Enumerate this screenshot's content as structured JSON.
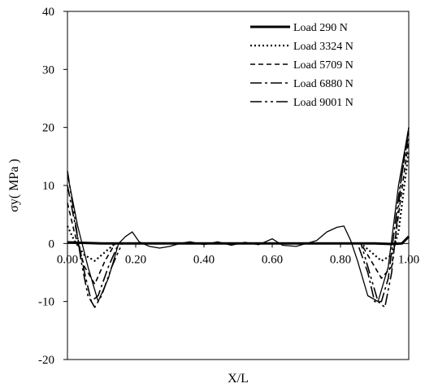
{
  "chart_data": {
    "type": "line",
    "xlabel": "X/L",
    "ylabel": "σy( MPa )",
    "xlim": [
      0,
      1
    ],
    "ylim": [
      -20,
      40
    ],
    "xticks": [
      "0.00",
      "0.20",
      "0.40",
      "0.60",
      "0.80",
      "1.00"
    ],
    "yticks": [
      "-20",
      "-10",
      "0",
      "10",
      "20",
      "30",
      "40"
    ],
    "grid": false,
    "legend_position": "top-right",
    "series": [
      {
        "name": "Load 290 N",
        "style": "solid-thick",
        "x": [
          0,
          0.05,
          0.1,
          0.2,
          0.3,
          0.4,
          0.5,
          0.6,
          0.7,
          0.8,
          0.9,
          0.95,
          0.98,
          1.0
        ],
        "y": [
          0.2,
          0.1,
          0,
          0,
          0,
          0,
          0,
          0,
          0,
          0,
          0,
          -0.1,
          0,
          1.2
        ]
      },
      {
        "name": "Load 3324 N",
        "style": "dotted",
        "x": [
          0,
          0.02,
          0.05,
          0.08,
          0.11,
          0.14,
          0.2,
          0.4,
          0.6,
          0.8,
          0.86,
          0.89,
          0.92,
          0.95,
          0.97,
          1.0
        ],
        "y": [
          3,
          0.5,
          -2,
          -3,
          -1.5,
          0,
          0,
          0,
          0,
          0,
          0,
          -1.5,
          -3,
          -2,
          2,
          16
        ]
      },
      {
        "name": "Load 5709 N",
        "style": "dashed",
        "x": [
          0,
          0.02,
          0.05,
          0.08,
          0.11,
          0.14,
          0.2,
          0.4,
          0.6,
          0.8,
          0.86,
          0.89,
          0.92,
          0.95,
          0.97,
          1.0
        ],
        "y": [
          7,
          2,
          -4,
          -7,
          -3,
          0,
          0,
          0,
          0,
          0,
          0,
          -3,
          -6,
          -4,
          5,
          18
        ]
      },
      {
        "name": "Load 6880 N",
        "style": "dash-dot",
        "x": [
          0,
          0.02,
          0.05,
          0.07,
          0.09,
          0.12,
          0.15,
          0.2,
          0.4,
          0.6,
          0.8,
          0.85,
          0.88,
          0.9,
          0.92,
          0.94,
          0.97,
          1.0
        ],
        "y": [
          10,
          4,
          -5,
          -10,
          -9,
          -4,
          0,
          0,
          0,
          0,
          0,
          0,
          -5,
          -10,
          -10,
          -6,
          8,
          20
        ]
      },
      {
        "name": "Load 9001 N",
        "style": "dash-dot-dot",
        "x": [
          0,
          0.02,
          0.04,
          0.06,
          0.08,
          0.1,
          0.13,
          0.16,
          0.2,
          0.4,
          0.6,
          0.8,
          0.86,
          0.89,
          0.91,
          0.93,
          0.95,
          0.98,
          1.0
        ],
        "y": [
          12.5,
          5,
          -3,
          -9,
          -11,
          -9,
          -4,
          0,
          0,
          0,
          0,
          0,
          0,
          -6,
          -10,
          -11,
          -5,
          12,
          19
        ]
      },
      {
        "name": "",
        "style": "solid-thin",
        "x": [
          0,
          0.03,
          0.06,
          0.09,
          0.12,
          0.15,
          0.17,
          0.19,
          0.21,
          0.24,
          0.27,
          0.3,
          0.33,
          0.36,
          0.4,
          0.44,
          0.48,
          0.52,
          0.56,
          0.6,
          0.63,
          0.67,
          0.7,
          0.73,
          0.76,
          0.79,
          0.81,
          0.83,
          0.85,
          0.88,
          0.91,
          0.94,
          0.97,
          1.0
        ],
        "y": [
          12,
          3,
          -4,
          -10,
          -6,
          0,
          1.2,
          2,
          0.3,
          -0.5,
          -0.8,
          -0.5,
          0,
          0.3,
          -0.2,
          0.3,
          -0.3,
          0.2,
          -0.2,
          0.8,
          -0.3,
          -0.5,
          0,
          0.5,
          2,
          2.8,
          3,
          0.5,
          -3,
          -9,
          -10,
          -4,
          10,
          20
        ]
      }
    ]
  }
}
